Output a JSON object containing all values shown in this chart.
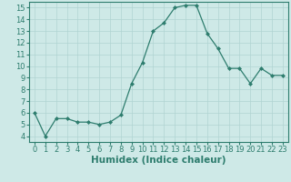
{
  "x": [
    0,
    1,
    2,
    3,
    4,
    5,
    6,
    7,
    8,
    9,
    10,
    11,
    12,
    13,
    14,
    15,
    16,
    17,
    18,
    19,
    20,
    21,
    22,
    23
  ],
  "y": [
    6.0,
    4.0,
    5.5,
    5.5,
    5.2,
    5.2,
    5.0,
    5.2,
    5.8,
    8.5,
    10.3,
    13.0,
    13.7,
    15.0,
    15.2,
    15.2,
    12.8,
    11.5,
    9.8,
    9.8,
    8.5,
    9.8,
    9.2,
    9.2
  ],
  "line_color": "#2e7d6e",
  "marker": "D",
  "marker_size": 2,
  "bg_color": "#cee9e7",
  "grid_color": "#b0d4d2",
  "xlabel": "Humidex (Indice chaleur)",
  "xlim": [
    -0.5,
    23.5
  ],
  "ylim": [
    3.5,
    15.5
  ],
  "yticks": [
    4,
    5,
    6,
    7,
    8,
    9,
    10,
    11,
    12,
    13,
    14,
    15
  ],
  "xticks": [
    0,
    1,
    2,
    3,
    4,
    5,
    6,
    7,
    8,
    9,
    10,
    11,
    12,
    13,
    14,
    15,
    16,
    17,
    18,
    19,
    20,
    21,
    22,
    23
  ],
  "tick_fontsize": 6,
  "xlabel_fontsize": 7.5,
  "axis_color": "#2e7d6e"
}
